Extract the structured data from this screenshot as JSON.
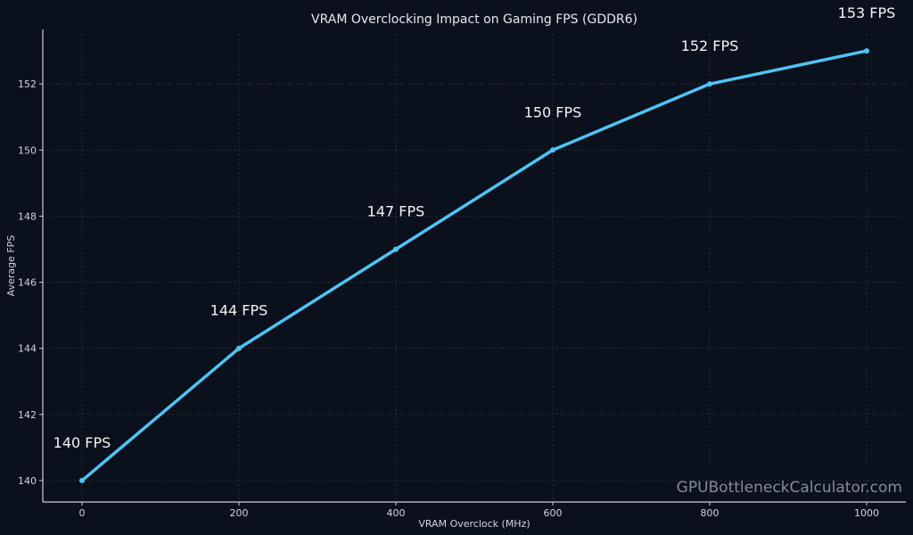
{
  "chart_data": {
    "type": "line",
    "title": "VRAM Overclocking Impact on Gaming FPS (GDDR6)",
    "xlabel": "VRAM Overclock (MHz)",
    "ylabel": "Average FPS",
    "x": [
      0,
      200,
      400,
      600,
      800,
      1000
    ],
    "series": [
      {
        "values": [
          140,
          144,
          147,
          150,
          152,
          153
        ],
        "color": "#4fc3f7"
      }
    ],
    "data_labels": [
      "140 FPS",
      "144 FPS",
      "147 FPS",
      "150 FPS",
      "152 FPS",
      "153 FPS"
    ],
    "xticks": [
      0,
      200,
      400,
      600,
      800,
      1000
    ],
    "yticks": [
      140,
      142,
      144,
      146,
      148,
      150,
      152
    ],
    "xlim": [
      -50,
      1050
    ],
    "ylim": [
      139.35,
      153.65
    ],
    "grid": true,
    "background": "#0b111c",
    "watermark": "GPUBottleneckCalculator.com"
  }
}
